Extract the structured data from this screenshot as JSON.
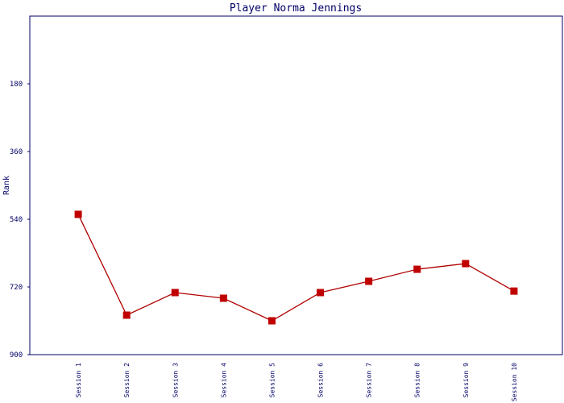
{
  "chart_data": {
    "type": "line",
    "title": "Player Norma Jennings",
    "y_label": "Rank",
    "categories": [
      "Session 1",
      "Session 2",
      "Session 3",
      "Session 4",
      "Session 5",
      "Session 6",
      "Session 7",
      "Session 8",
      "Session 9",
      "Session 10"
    ],
    "values": [
      527,
      795,
      735,
      750,
      810,
      735,
      705,
      673,
      658,
      731
    ],
    "color": "#b00000",
    "marker_color": "#c00000",
    "ylim": [
      900,
      0
    ],
    "yticks": [
      180,
      360,
      540,
      720,
      900
    ],
    "y_inverted": true,
    "grid": false
  }
}
